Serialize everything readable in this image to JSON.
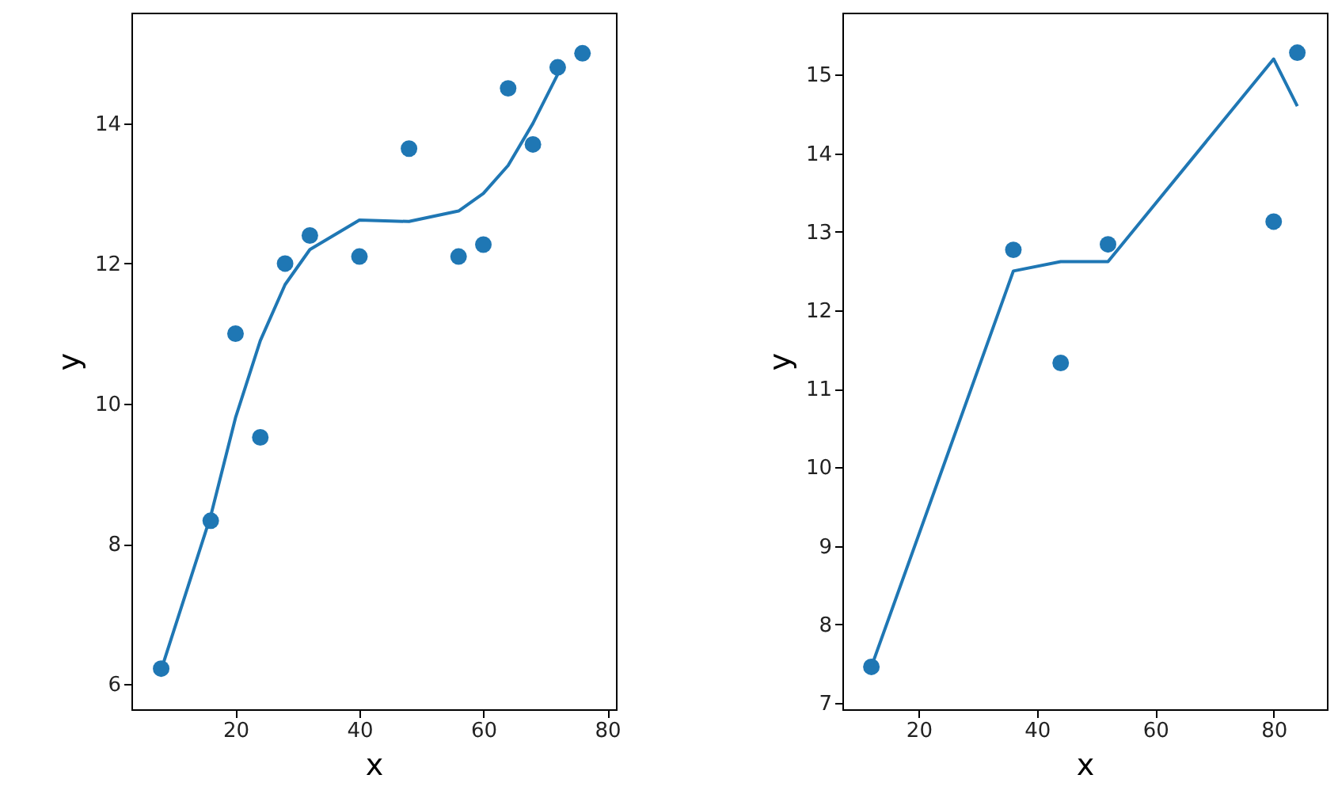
{
  "chart_data": [
    {
      "type": "scatter",
      "xlabel": "x",
      "ylabel": "y",
      "x": [
        8,
        16,
        20,
        24,
        28,
        32,
        40,
        48,
        56,
        60,
        64,
        68,
        72,
        76
      ],
      "xlim": [
        3.2,
        81.4
      ],
      "xticks": [
        20,
        40,
        60,
        80
      ],
      "ylim": [
        5.64,
        15.58
      ],
      "yticks": [
        6,
        8,
        10,
        12,
        14
      ],
      "grid": false,
      "series": [
        {
          "marker": "circle",
          "color": "#1f77b4",
          "values": [
            6.22,
            8.33,
            11.0,
            9.52,
            12.0,
            12.4,
            12.1,
            13.64,
            12.1,
            12.27,
            14.5,
            13.7,
            14.8,
            15.0
          ]
        },
        {
          "type": "line",
          "color": "#1f77b4",
          "x": [
            8,
            16,
            20,
            24,
            28,
            32,
            40,
            48,
            56,
            60,
            64,
            68,
            72
          ],
          "values": [
            6.2,
            8.4,
            9.8,
            10.9,
            11.7,
            12.2,
            12.62,
            12.6,
            12.75,
            13.0,
            13.4,
            14.0,
            14.7
          ]
        }
      ]
    },
    {
      "type": "scatter",
      "xlabel": "x",
      "ylabel": "y",
      "x": [
        12,
        36,
        44,
        52,
        80,
        84
      ],
      "xlim": [
        7.1,
        89
      ],
      "xticks": [
        20,
        40,
        60,
        80
      ],
      "ylim": [
        6.92,
        15.79
      ],
      "yticks": [
        7,
        8,
        9,
        10,
        11,
        12,
        13,
        14,
        15
      ],
      "grid": false,
      "series": [
        {
          "marker": "circle",
          "color": "#1f77b4",
          "values": [
            7.46,
            12.77,
            11.33,
            12.84,
            13.13,
            15.28
          ]
        },
        {
          "type": "line",
          "color": "#1f77b4",
          "x": [
            12,
            36,
            44,
            52,
            80,
            84
          ],
          "values": [
            7.46,
            12.5,
            12.62,
            12.62,
            15.2,
            14.6
          ]
        }
      ]
    }
  ]
}
